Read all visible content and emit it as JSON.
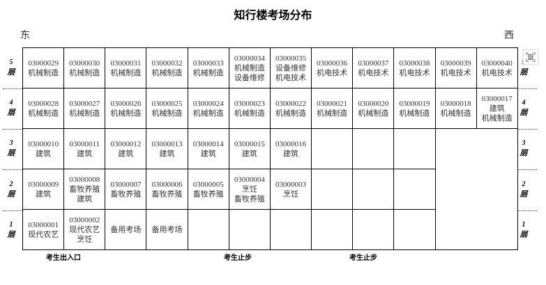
{
  "title": "知行楼考场分布",
  "east": "东",
  "west": "西",
  "floor_suffix": "层",
  "floors": [
    {
      "num": "5",
      "cells": [
        {
          "code": "03000029",
          "lines": [
            "机械制造"
          ]
        },
        {
          "code": "03000030",
          "lines": [
            "机械制造"
          ]
        },
        {
          "code": "03000031",
          "lines": [
            "机械制造"
          ]
        },
        {
          "code": "03000032",
          "lines": [
            "机械制造"
          ]
        },
        {
          "code": "03000033",
          "lines": [
            "机械制造"
          ]
        },
        {
          "code": "03000034",
          "lines": [
            "机械制造",
            "设备维修"
          ]
        },
        {
          "code": "03000035",
          "lines": [
            "设备维修",
            "机电技术"
          ]
        },
        {
          "code": "03000036",
          "lines": [
            "机电技术"
          ]
        },
        {
          "code": "03000037",
          "lines": [
            "机电技术"
          ]
        },
        {
          "code": "03000038",
          "lines": [
            "机电技术"
          ]
        },
        {
          "code": "03000039",
          "lines": [
            "机电技术"
          ]
        },
        {
          "code": "03000040",
          "lines": [
            "机电技术"
          ]
        }
      ]
    },
    {
      "num": "4",
      "cells": [
        {
          "code": "03000028",
          "lines": [
            "机械制造"
          ]
        },
        {
          "code": "03000027",
          "lines": [
            "机械制造"
          ]
        },
        {
          "code": "03000026",
          "lines": [
            "机械制造"
          ]
        },
        {
          "code": "03000025",
          "lines": [
            "机械制造"
          ]
        },
        {
          "code": "03000024",
          "lines": [
            "机械制造"
          ]
        },
        {
          "code": "03000023",
          "lines": [
            "机械制造"
          ]
        },
        {
          "code": "03000022",
          "lines": [
            "机械制造"
          ]
        },
        {
          "code": "03000021",
          "lines": [
            "机械制造"
          ]
        },
        {
          "code": "03000020",
          "lines": [
            "机械制造"
          ]
        },
        {
          "code": "03000019",
          "lines": [
            "机械制造"
          ]
        },
        {
          "code": "03000018",
          "lines": [
            "机械制造"
          ]
        },
        {
          "code": "03000017",
          "lines": [
            "建筑",
            "机械制造"
          ]
        }
      ]
    },
    {
      "num": "3",
      "cells": [
        {
          "code": "03000010",
          "lines": [
            "建筑"
          ]
        },
        {
          "code": "03000011",
          "lines": [
            "建筑"
          ]
        },
        {
          "code": "03000012",
          "lines": [
            "建筑"
          ]
        },
        {
          "code": "03000013",
          "lines": [
            "建筑"
          ]
        },
        {
          "code": "03000014",
          "lines": [
            "建筑"
          ]
        },
        {
          "code": "03000015",
          "lines": [
            "建筑"
          ]
        },
        {
          "code": "03000016",
          "lines": [
            "建筑"
          ]
        },
        {
          "code": "",
          "lines": []
        },
        {
          "code": "",
          "lines": []
        },
        {
          "code": "",
          "lines": []
        }
      ]
    },
    {
      "num": "2",
      "cells": [
        {
          "code": "03000009",
          "lines": [
            "建筑"
          ]
        },
        {
          "code": "03000008",
          "lines": [
            "畜牧养殖",
            "建筑"
          ]
        },
        {
          "code": "03000007",
          "lines": [
            "畜牧养殖"
          ]
        },
        {
          "code": "03000006",
          "lines": [
            "畜牧养殖"
          ]
        },
        {
          "code": "03000005",
          "lines": [
            "畜牧养殖"
          ]
        },
        {
          "code": "03000004",
          "lines": [
            "烹饪",
            "畜牧养殖"
          ]
        },
        {
          "code": "03000003",
          "lines": [
            "烹饪"
          ]
        },
        {
          "code": "",
          "lines": []
        },
        {
          "code": "",
          "lines": []
        },
        {
          "code": "",
          "lines": []
        }
      ]
    },
    {
      "num": "1",
      "cells": [
        {
          "code": "03000001",
          "lines": [
            "现代农艺"
          ]
        },
        {
          "code": "03000002",
          "lines": [
            "现代农艺",
            "烹饪"
          ]
        },
        {
          "code": "",
          "lines": [
            "备用考场"
          ]
        },
        {
          "code": "",
          "lines": [
            "备用考场"
          ]
        },
        {
          "code": "",
          "lines": []
        },
        {
          "code": "",
          "lines": []
        },
        {
          "code": "",
          "lines": []
        },
        {
          "code": "",
          "lines": []
        },
        {
          "code": "",
          "lines": []
        },
        {
          "code": "",
          "lines": []
        }
      ]
    }
  ],
  "bottom_labels": [
    "考生出入口",
    "考生止步",
    "考生止步"
  ],
  "icon": "fullscreen-table-icon"
}
